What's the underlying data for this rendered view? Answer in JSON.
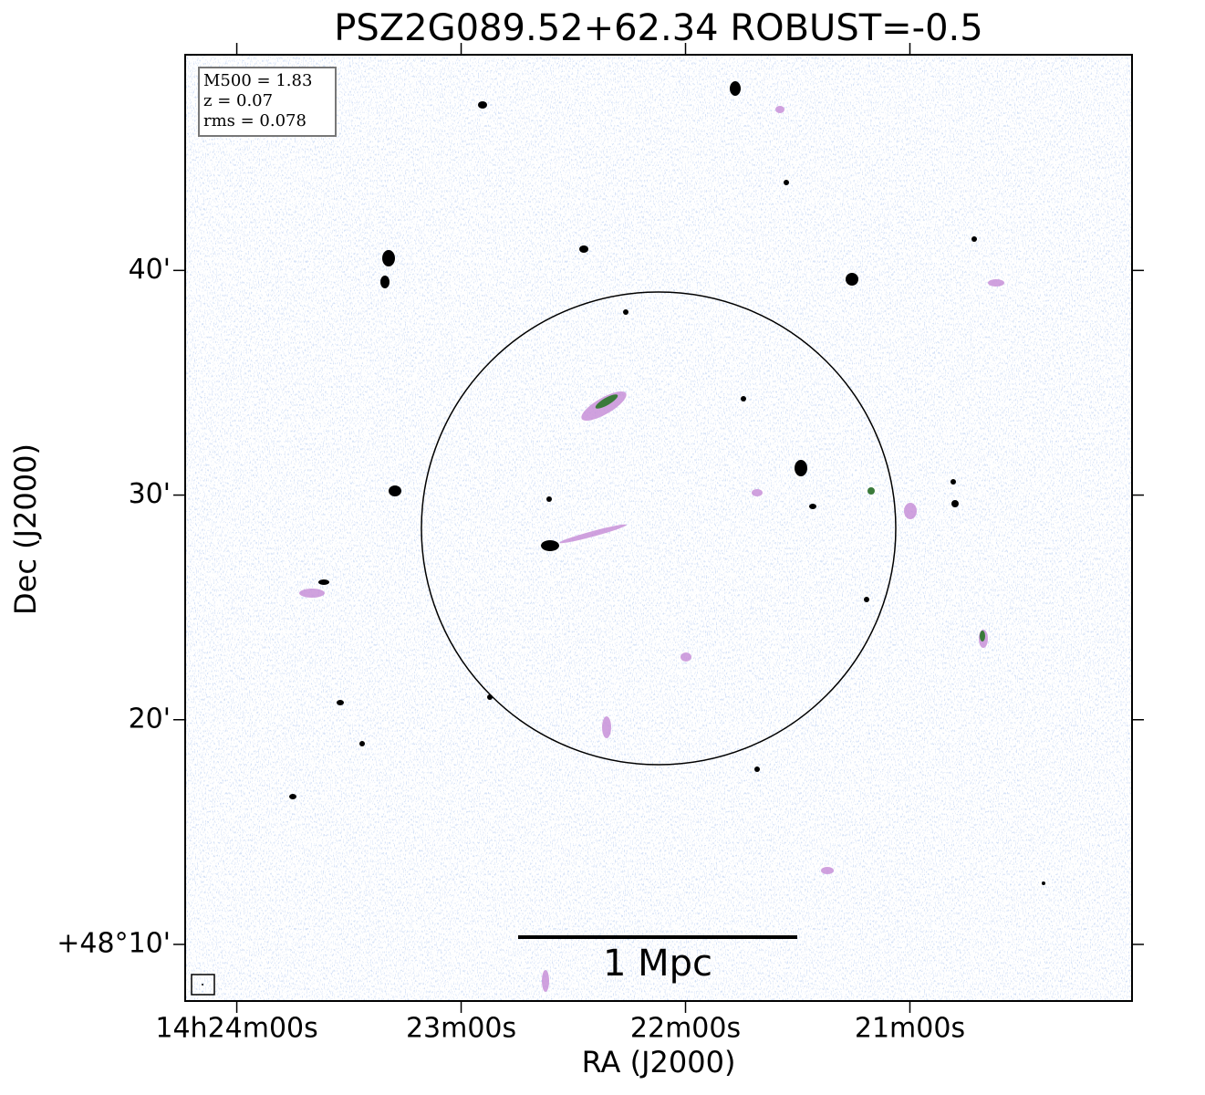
{
  "chart_data": {
    "type": "image",
    "title": "PSZ2G089.52+62.34 ROBUST=-0.5",
    "x_label": "RA (J2000)",
    "y_label": "Dec (J2000)",
    "xlim": [
      24.23,
      20.01
    ],
    "xticks": [
      {
        "value": 24,
        "label": "14h24m00s"
      },
      {
        "value": 23,
        "label": "23m00s"
      },
      {
        "value": 22,
        "label": "22m00s"
      },
      {
        "value": 21,
        "label": "21m00s"
      }
    ],
    "ylim": [
      7.48,
      49.6
    ],
    "yticks": [
      {
        "value": 40,
        "label": "40'"
      },
      {
        "value": 30,
        "label": "30'"
      },
      {
        "value": 20,
        "label": "20'"
      },
      {
        "value": 10,
        "label": "+48°10'"
      }
    ],
    "annotations": [
      "M500 = 1.83",
      "z = 0.07",
      "rms = 0.078"
    ],
    "scalebar_label": "1 Mpc"
  }
}
